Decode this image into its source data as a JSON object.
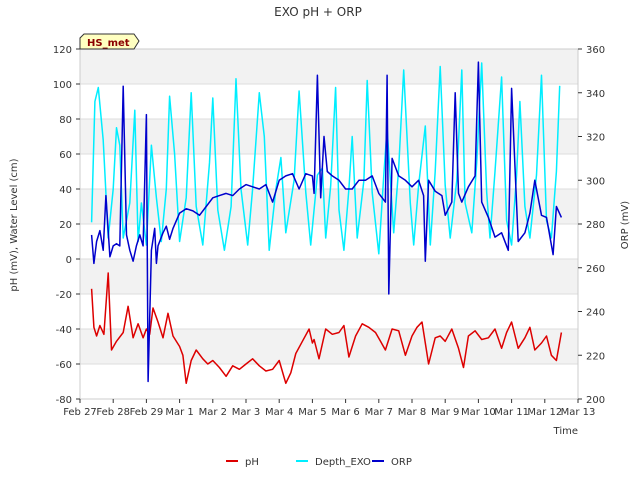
{
  "chart_data": {
    "type": "line",
    "title": "EXO pH + ORP",
    "xlabel": "Time",
    "ylabel": "pH (mV), Water Level (cm)",
    "y2label": "ORP (mV)",
    "badge": "HS_met",
    "x_ticks": [
      "Feb 27",
      "Feb 28",
      "Feb 29",
      "Mar 1",
      "Mar 2",
      "Mar 3",
      "Mar 4",
      "Mar 5",
      "Mar 6",
      "Mar 7",
      "Mar 8",
      "Mar 9",
      "Mar 10",
      "Mar 11",
      "Mar 12",
      "Mar 13"
    ],
    "xlim": [
      0,
      15
    ],
    "ylim": [
      -80,
      120
    ],
    "y_ticks": [
      -80,
      -60,
      -40,
      -20,
      0,
      20,
      40,
      60,
      80,
      100,
      120
    ],
    "y2lim": [
      200,
      360
    ],
    "y2_ticks": [
      200,
      220,
      240,
      260,
      280,
      300,
      320,
      340,
      360
    ],
    "grid": true,
    "legend_position": "bottom-center",
    "series": [
      {
        "name": "pH",
        "color": "#dd0000",
        "axis": "left",
        "x": [
          0.35,
          0.42,
          0.5,
          0.6,
          0.72,
          0.85,
          0.95,
          1.1,
          1.3,
          1.45,
          1.6,
          1.75,
          1.9,
          2.0,
          2.1,
          2.2,
          2.35,
          2.5,
          2.65,
          2.8,
          3.0,
          3.1,
          3.2,
          3.35,
          3.5,
          3.7,
          3.85,
          4.0,
          4.2,
          4.4,
          4.6,
          4.8,
          5.0,
          5.2,
          5.4,
          5.6,
          5.8,
          6.0,
          6.2,
          6.35,
          6.5,
          6.7,
          6.9,
          7.0,
          7.05,
          7.2,
          7.4,
          7.6,
          7.8,
          7.95,
          8.1,
          8.3,
          8.5,
          8.7,
          8.9,
          9.05,
          9.2,
          9.4,
          9.6,
          9.8,
          10.0,
          10.15,
          10.3,
          10.5,
          10.7,
          10.85,
          11.0,
          11.2,
          11.4,
          11.55,
          11.7,
          11.9,
          12.1,
          12.3,
          12.5,
          12.7,
          12.85,
          13.0,
          13.2,
          13.4,
          13.55,
          13.7,
          13.9,
          14.05,
          14.2,
          14.35,
          14.5
        ],
        "values": [
          -17,
          -39,
          -44,
          -38,
          -43,
          -8,
          -52,
          -47,
          -42,
          -27,
          -45,
          -37,
          -45,
          -40,
          -43,
          -28,
          -36,
          -45,
          -31,
          -44,
          -50,
          -55,
          -71,
          -58,
          -52,
          -57,
          -60,
          -58,
          -62,
          -67,
          -61,
          -63,
          -60,
          -57,
          -61,
          -64,
          -63,
          -58,
          -71,
          -65,
          -54,
          -47,
          -40,
          -48,
          -46,
          -57,
          -40,
          -43,
          -42,
          -38,
          -56,
          -44,
          -37,
          -39,
          -42,
          -47,
          -52,
          -40,
          -41,
          -55,
          -44,
          -39,
          -36,
          -60,
          -45,
          -44,
          -47,
          -40,
          -51,
          -62,
          -44,
          -41,
          -46,
          -45,
          -40,
          -51,
          -42,
          -36,
          -51,
          -45,
          -39,
          -52,
          -48,
          -44,
          -55,
          -58,
          -42
        ]
      },
      {
        "name": "Depth_EXO",
        "color": "#00eeff",
        "axis": "left",
        "x": [
          0.35,
          0.45,
          0.55,
          0.7,
          0.85,
          1.0,
          1.1,
          1.2,
          1.3,
          1.5,
          1.65,
          1.75,
          1.85,
          2.0,
          2.15,
          2.3,
          2.45,
          2.6,
          2.7,
          2.85,
          3.0,
          3.2,
          3.35,
          3.5,
          3.7,
          3.9,
          4.0,
          4.15,
          4.35,
          4.55,
          4.7,
          4.85,
          5.05,
          5.2,
          5.4,
          5.55,
          5.7,
          5.9,
          6.05,
          6.2,
          6.45,
          6.6,
          6.8,
          6.95,
          7.15,
          7.3,
          7.4,
          7.55,
          7.7,
          7.8,
          7.95,
          8.1,
          8.2,
          8.35,
          8.55,
          8.65,
          8.8,
          9.0,
          9.15,
          9.25,
          9.45,
          9.6,
          9.75,
          9.95,
          10.05,
          10.2,
          10.4,
          10.55,
          10.7,
          10.85,
          11.0,
          11.15,
          11.35,
          11.5,
          11.6,
          11.8,
          11.95,
          12.1,
          12.25,
          12.35,
          12.5,
          12.7,
          12.85,
          13.0,
          13.15,
          13.25,
          13.4,
          13.55,
          13.75,
          13.9,
          14.05,
          14.2,
          14.35,
          14.45
        ],
        "values": [
          21,
          90,
          98,
          68,
          12,
          40,
          75,
          65,
          12,
          32,
          85,
          10,
          32,
          8,
          65,
          35,
          10,
          40,
          93,
          60,
          10,
          35,
          95,
          30,
          8,
          55,
          92,
          28,
          5,
          30,
          103,
          40,
          8,
          40,
          95,
          70,
          5,
          40,
          58,
          15,
          45,
          96,
          38,
          8,
          48,
          52,
          12,
          42,
          98,
          28,
          5,
          40,
          70,
          12,
          45,
          102,
          38,
          3,
          48,
          75,
          15,
          52,
          108,
          32,
          8,
          42,
          76,
          8,
          50,
          110,
          42,
          12,
          45,
          108,
          32,
          15,
          55,
          112,
          38,
          12,
          50,
          104,
          22,
          8,
          48,
          90,
          30,
          12,
          48,
          105,
          22,
          12,
          50,
          99
        ]
      },
      {
        "name": "ORP",
        "color": "#0000cc",
        "axis": "right",
        "x": [
          0.35,
          0.42,
          0.5,
          0.6,
          0.7,
          0.78,
          0.9,
          1.0,
          1.1,
          1.2,
          1.3,
          1.4,
          1.5,
          1.6,
          1.7,
          1.8,
          1.9,
          2.0,
          2.05,
          2.15,
          2.25,
          2.3,
          2.35,
          2.5,
          2.6,
          2.7,
          2.8,
          3.0,
          3.2,
          3.4,
          3.6,
          3.8,
          4.0,
          4.2,
          4.4,
          4.6,
          4.8,
          5.0,
          5.2,
          5.4,
          5.6,
          5.8,
          6.0,
          6.2,
          6.4,
          6.6,
          6.8,
          7.0,
          7.05,
          7.15,
          7.25,
          7.35,
          7.45,
          7.6,
          7.8,
          8.0,
          8.2,
          8.4,
          8.6,
          8.8,
          9.0,
          9.2,
          9.25,
          9.3,
          9.4,
          9.6,
          9.8,
          10.0,
          10.2,
          10.35,
          10.4,
          10.5,
          10.7,
          10.9,
          11.0,
          11.2,
          11.3,
          11.4,
          11.5,
          11.7,
          11.9,
          12.0,
          12.1,
          12.3,
          12.5,
          12.7,
          12.9,
          13.0,
          13.2,
          13.4,
          13.55,
          13.7,
          13.9,
          14.05,
          14.25,
          14.35,
          14.5
        ],
        "values": [
          275,
          262,
          272,
          277,
          268,
          293,
          265,
          270,
          271,
          270,
          343,
          275,
          268,
          263,
          270,
          275,
          270,
          330,
          208,
          268,
          278,
          262,
          270,
          276,
          279,
          273,
          278,
          285,
          287,
          286,
          284,
          288,
          292,
          293,
          294,
          293,
          296,
          298,
          297,
          296,
          298,
          290,
          300,
          302,
          303,
          296,
          303,
          302,
          294,
          348,
          292,
          320,
          304,
          302,
          300,
          296,
          296,
          300,
          300,
          302,
          294,
          290,
          348,
          248,
          310,
          302,
          300,
          297,
          300,
          293,
          263,
          300,
          295,
          293,
          284,
          290,
          340,
          294,
          290,
          297,
          302,
          354,
          290,
          283,
          274,
          276,
          268,
          342,
          272,
          276,
          285,
          300,
          284,
          283,
          266,
          288,
          283
        ]
      }
    ]
  }
}
